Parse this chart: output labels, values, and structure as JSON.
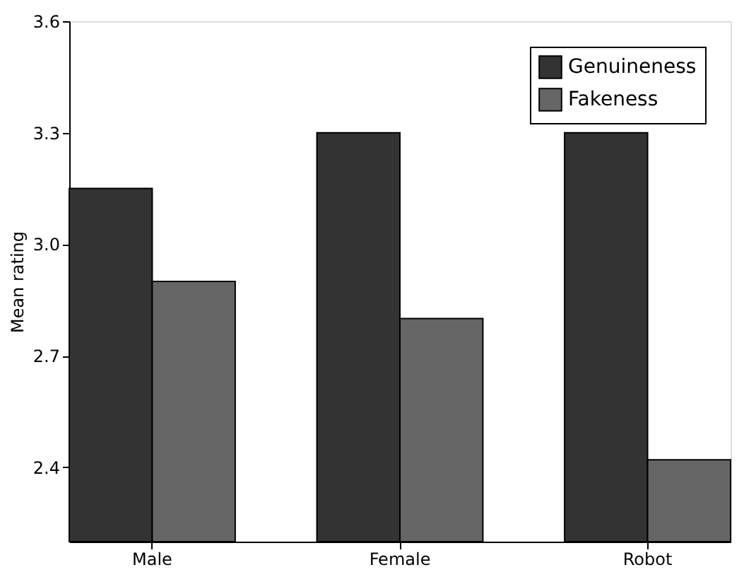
{
  "chart_data": {
    "type": "bar",
    "ylabel": "Mean rating",
    "categories": [
      "Male",
      "Female",
      "Robot"
    ],
    "series": [
      {
        "name": "Genuineness",
        "color": "#333333",
        "values": [
          3.15,
          3.3,
          3.3
        ]
      },
      {
        "name": "Fakeness",
        "color": "#666666",
        "values": [
          2.9,
          2.8,
          2.42
        ]
      }
    ],
    "ylim": [
      2.2,
      3.6
    ],
    "yticks": [
      {
        "value": 2.4,
        "label": "2.4"
      },
      {
        "value": 2.7,
        "label": "2.7"
      },
      {
        "value": 3.0,
        "label": "3.0"
      },
      {
        "value": 3.3,
        "label": "3.3"
      },
      {
        "value": 3.6,
        "label": "3.6"
      }
    ],
    "grid": false,
    "legend": "top right"
  }
}
